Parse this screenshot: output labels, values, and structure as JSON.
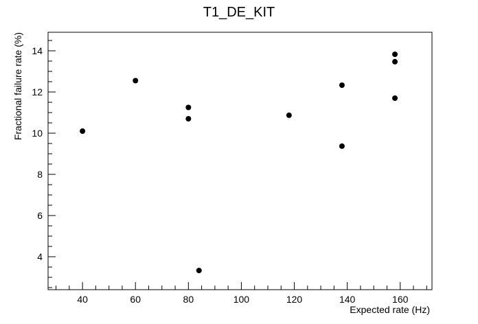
{
  "chart_data": {
    "type": "scatter",
    "title": "T1_DE_KIT",
    "xlabel": "Expected rate (Hz)",
    "ylabel": "Fractional failure rate (%)",
    "xlim": [
      27,
      172
    ],
    "ylim": [
      2.4,
      14.9
    ],
    "xticks": [
      40,
      60,
      80,
      100,
      120,
      140,
      160
    ],
    "yticks": [
      4,
      6,
      8,
      10,
      12,
      14
    ],
    "grid": false,
    "legend": "none",
    "marker_color": "#000000",
    "points": [
      {
        "x": 40,
        "y": 10.1
      },
      {
        "x": 60,
        "y": 12.55
      },
      {
        "x": 80,
        "y": 11.25
      },
      {
        "x": 80,
        "y": 10.7
      },
      {
        "x": 84,
        "y": 3.33
      },
      {
        "x": 118,
        "y": 10.87
      },
      {
        "x": 138,
        "y": 12.33
      },
      {
        "x": 138,
        "y": 9.37
      },
      {
        "x": 158,
        "y": 13.83
      },
      {
        "x": 158,
        "y": 13.47
      },
      {
        "x": 158,
        "y": 11.7
      }
    ]
  }
}
